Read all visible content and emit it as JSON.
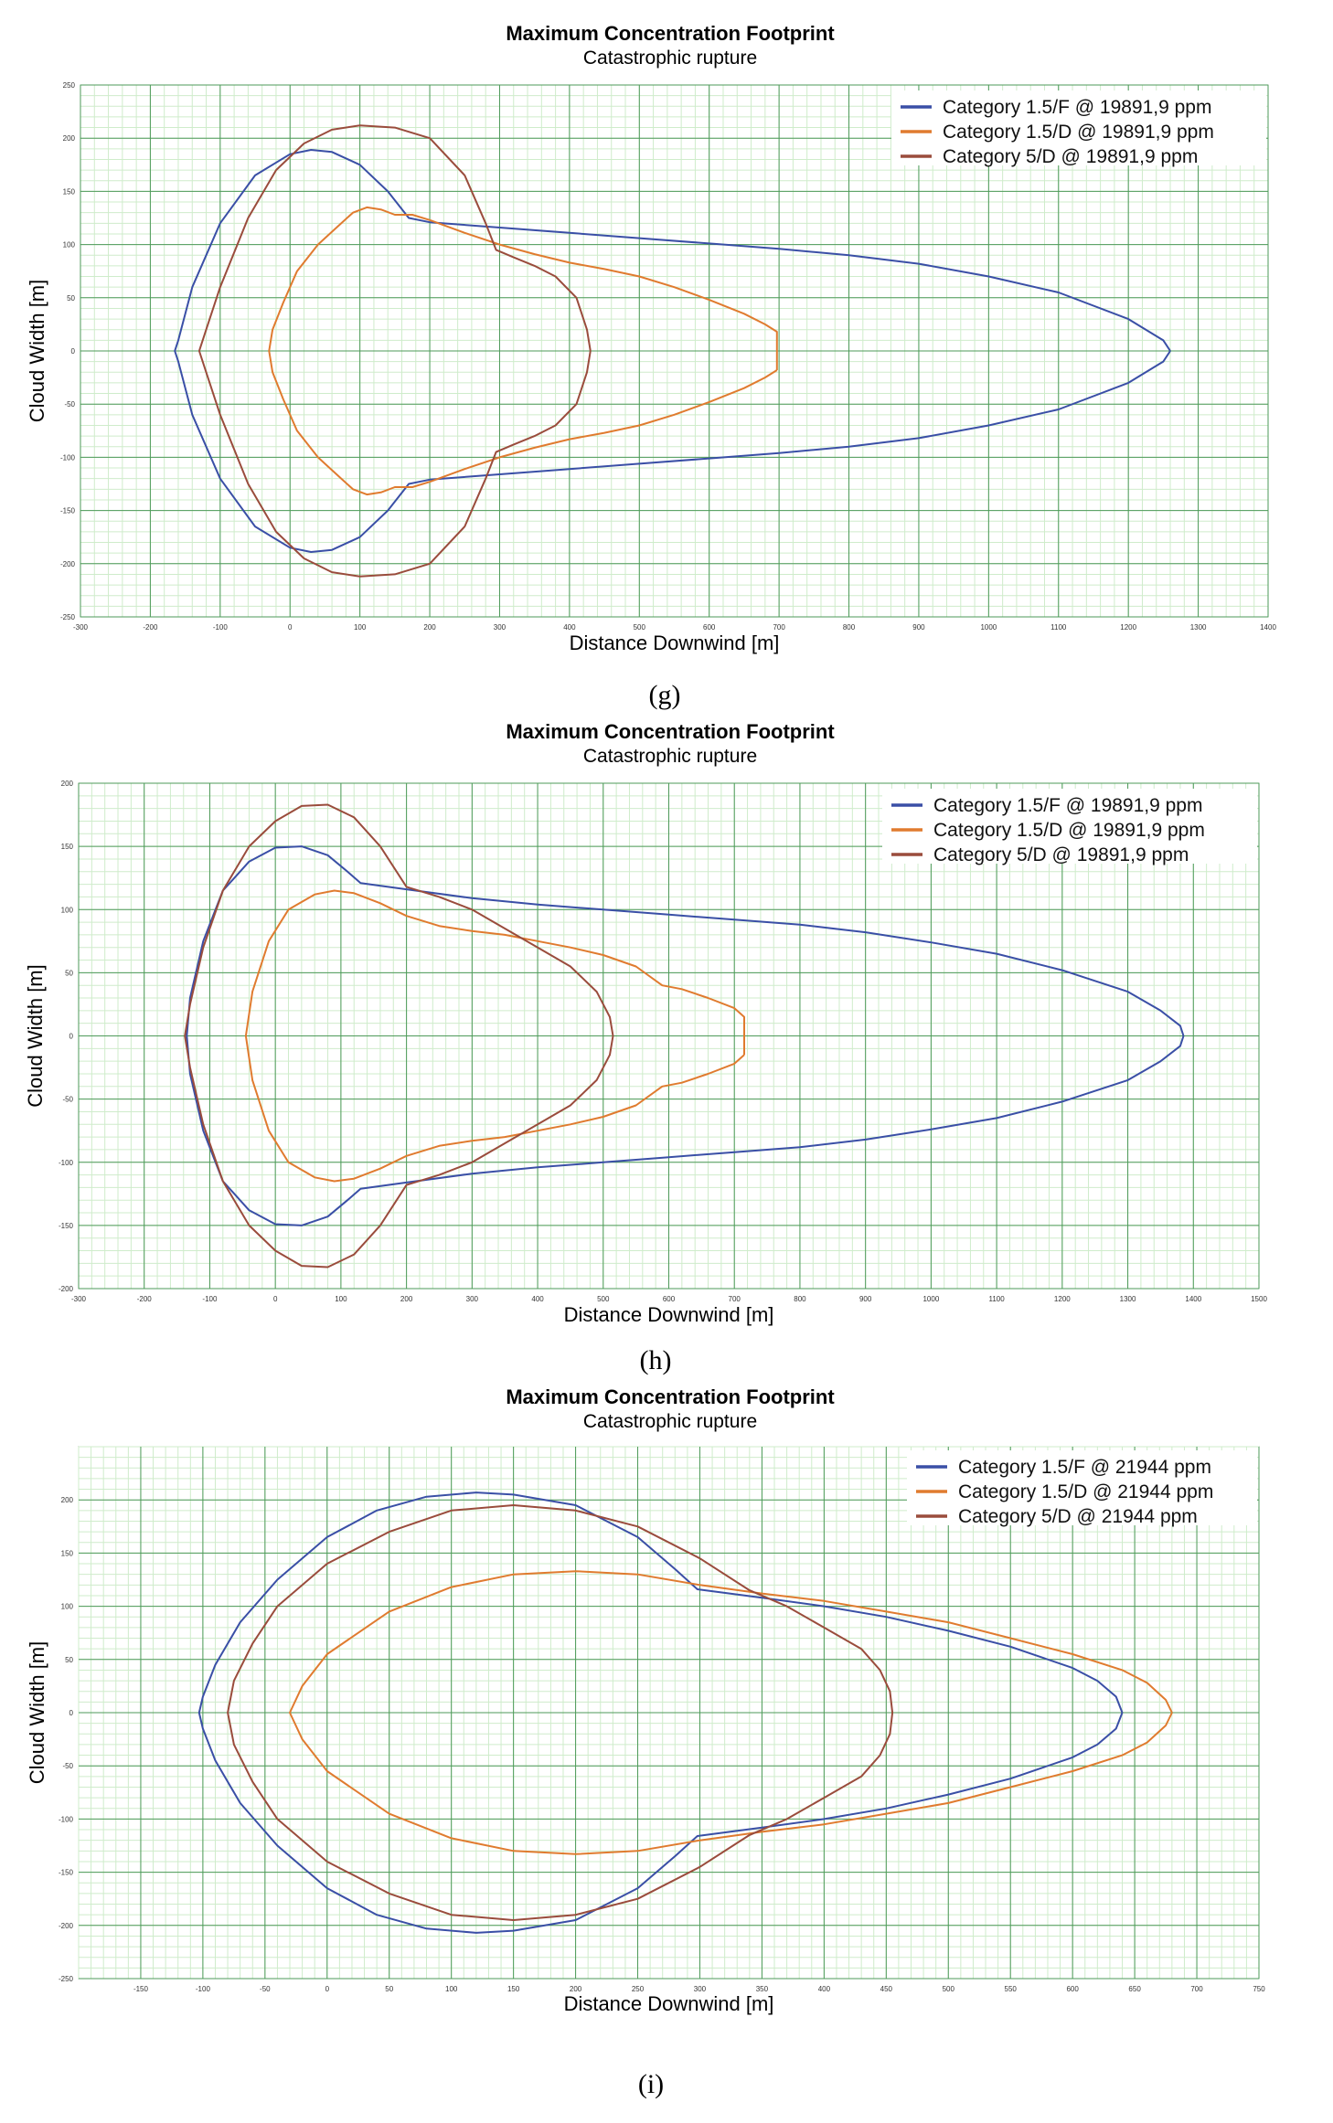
{
  "colors": {
    "cat_15F": "#3a4fa6",
    "cat_15D": "#e07b2f",
    "cat_5D": "#9a4c3c",
    "minor_grid": "#cfeccb",
    "major_grid": "#4e9a5a"
  },
  "chart_data": [
    {
      "panel_label": "(g)",
      "type": "line",
      "title": "Maximum Concentration Footprint",
      "subtitle": "Catastrophic rupture",
      "xlabel": "Distance Downwind [m]",
      "ylabel": "Cloud Width [m]",
      "xlim": [
        -300,
        1400
      ],
      "ylim": [
        -250,
        250
      ],
      "xticks": [
        -300,
        -200,
        -100,
        0,
        100,
        200,
        300,
        400,
        500,
        600,
        700,
        800,
        900,
        1000,
        1100,
        1200,
        1300,
        1400
      ],
      "yticks": [
        -250,
        -200,
        -150,
        -100,
        -50,
        0,
        50,
        100,
        150,
        200,
        250
      ],
      "grid": true,
      "legend": "top-right",
      "series": [
        {
          "name": "Category 1.5/F @ 19891,9 ppm",
          "color_key": "cat_15F",
          "x": [
            1260,
            1250,
            1200,
            1100,
            1000,
            900,
            800,
            700,
            600,
            500,
            400,
            300,
            200,
            170,
            140,
            100,
            60,
            30,
            0,
            -50,
            -100,
            -140,
            -160,
            -165,
            -160,
            -140,
            -100,
            -50,
            0,
            30,
            60,
            100,
            140,
            170,
            200,
            300,
            400,
            500,
            600,
            700,
            800,
            900,
            1000,
            1100,
            1200,
            1250,
            1260
          ],
          "y": [
            0,
            10,
            30,
            55,
            70,
            82,
            90,
            96,
            101,
            106,
            111,
            116,
            121,
            125,
            150,
            175,
            187,
            189,
            185,
            165,
            120,
            60,
            10,
            0,
            -10,
            -60,
            -120,
            -165,
            -185,
            -189,
            -187,
            -175,
            -150,
            -125,
            -121,
            -116,
            -111,
            -106,
            -101,
            -96,
            -90,
            -82,
            -70,
            -55,
            -30,
            -10,
            0
          ]
        },
        {
          "name": "Category 1.5/D @ 19891,9 ppm",
          "color_key": "cat_15D",
          "x": [
            697,
            697,
            680,
            650,
            600,
            550,
            500,
            450,
            400,
            350,
            300,
            250,
            200,
            175,
            150,
            130,
            110,
            90,
            70,
            40,
            10,
            -10,
            -25,
            -30,
            -25,
            -10,
            10,
            40,
            70,
            90,
            110,
            130,
            150,
            175,
            200,
            250,
            300,
            350,
            400,
            450,
            500,
            550,
            600,
            650,
            680,
            697,
            697
          ],
          "y": [
            -18,
            18,
            25,
            35,
            48,
            60,
            70,
            77,
            83,
            91,
            100,
            111,
            123,
            128,
            128,
            133,
            135,
            130,
            118,
            100,
            75,
            45,
            20,
            0,
            -20,
            -45,
            -75,
            -100,
            -118,
            -130,
            -135,
            -133,
            -128,
            -128,
            -123,
            -111,
            -100,
            -91,
            -83,
            -77,
            -70,
            -60,
            -48,
            -35,
            -25,
            -18,
            -18
          ]
        },
        {
          "name": "Category 5/D @ 19891,9 ppm",
          "color_key": "cat_5D",
          "x": [
            430,
            425,
            410,
            380,
            350,
            320,
            295,
            280,
            250,
            200,
            150,
            100,
            60,
            20,
            -20,
            -60,
            -100,
            -120,
            -130,
            -120,
            -100,
            -60,
            -20,
            20,
            60,
            100,
            150,
            200,
            250,
            280,
            295,
            320,
            350,
            380,
            410,
            425,
            430
          ],
          "y": [
            0,
            20,
            50,
            70,
            80,
            88,
            95,
            120,
            165,
            200,
            210,
            212,
            208,
            195,
            170,
            125,
            60,
            20,
            0,
            -20,
            -60,
            -125,
            -170,
            -195,
            -208,
            -212,
            -210,
            -200,
            -165,
            -120,
            -95,
            -88,
            -80,
            -70,
            -50,
            -20,
            0
          ]
        }
      ]
    },
    {
      "panel_label": "(h)",
      "type": "line",
      "title": "Maximum Concentration Footprint",
      "subtitle": "Catastrophic rupture",
      "xlabel": "Distance Downwind [m]",
      "ylabel": "Cloud Width [m]",
      "xlim": [
        -300,
        1500
      ],
      "ylim": [
        -200,
        200
      ],
      "xticks": [
        -300,
        -200,
        -100,
        0,
        100,
        200,
        300,
        400,
        500,
        600,
        700,
        800,
        900,
        1000,
        1100,
        1200,
        1300,
        1400,
        1500
      ],
      "yticks": [
        -200,
        -150,
        -100,
        -50,
        0,
        50,
        100,
        150,
        200
      ],
      "grid": true,
      "legend": "top-right",
      "series": [
        {
          "name": "Category 1.5/F @ 19891,9 ppm",
          "color_key": "cat_15F",
          "x": [
            1385,
            1380,
            1350,
            1300,
            1200,
            1100,
            1000,
            900,
            800,
            700,
            600,
            500,
            400,
            300,
            200,
            130,
            110,
            80,
            40,
            0,
            -40,
            -80,
            -110,
            -130,
            -135,
            -130,
            -110,
            -80,
            -40,
            0,
            40,
            80,
            110,
            130,
            200,
            300,
            400,
            500,
            600,
            700,
            800,
            900,
            1000,
            1100,
            1200,
            1300,
            1350,
            1380,
            1385
          ],
          "y": [
            0,
            8,
            20,
            35,
            52,
            65,
            74,
            82,
            88,
            92,
            96,
            100,
            104,
            109,
            116,
            121,
            130,
            143,
            150,
            149,
            138,
            115,
            75,
            30,
            0,
            -30,
            -75,
            -115,
            -138,
            -149,
            -150,
            -143,
            -130,
            -121,
            -116,
            -109,
            -104,
            -100,
            -96,
            -92,
            -88,
            -82,
            -74,
            -65,
            -52,
            -35,
            -20,
            -8,
            0
          ]
        },
        {
          "name": "Category 1.5/D @ 19891,9 ppm",
          "color_key": "cat_15D",
          "x": [
            715,
            715,
            700,
            660,
            620,
            590,
            550,
            500,
            450,
            400,
            350,
            300,
            250,
            200,
            160,
            120,
            90,
            60,
            20,
            -10,
            -35,
            -45,
            -35,
            -10,
            20,
            60,
            90,
            120,
            160,
            200,
            250,
            300,
            350,
            400,
            450,
            500,
            550,
            590,
            620,
            660,
            700,
            715,
            715
          ],
          "y": [
            -15,
            15,
            22,
            30,
            37,
            40,
            55,
            64,
            70,
            75,
            80,
            83,
            87,
            95,
            105,
            113,
            115,
            112,
            100,
            75,
            35,
            0,
            -35,
            -75,
            -100,
            -112,
            -115,
            -113,
            -105,
            -95,
            -87,
            -83,
            -80,
            -75,
            -70,
            -64,
            -55,
            -40,
            -37,
            -30,
            -22,
            -15,
            -15
          ]
        },
        {
          "name": "Category 5/D @ 19891,9 ppm",
          "color_key": "cat_5D",
          "x": [
            515,
            510,
            490,
            450,
            400,
            350,
            300,
            250,
            200,
            160,
            120,
            80,
            40,
            0,
            -40,
            -80,
            -110,
            -130,
            -138,
            -130,
            -110,
            -80,
            -40,
            0,
            40,
            80,
            120,
            160,
            200,
            250,
            300,
            350,
            400,
            450,
            490,
            510,
            515
          ],
          "y": [
            0,
            15,
            35,
            55,
            70,
            85,
            100,
            110,
            118,
            150,
            173,
            183,
            182,
            170,
            150,
            115,
            70,
            25,
            0,
            -25,
            -70,
            -115,
            -150,
            -170,
            -182,
            -183,
            -173,
            -150,
            -118,
            -110,
            -100,
            -85,
            -70,
            -55,
            -35,
            -15,
            0
          ]
        }
      ]
    },
    {
      "panel_label": "(i)",
      "type": "line",
      "title": "Maximum Concentration Footprint",
      "subtitle": "Catastrophic rupture",
      "xlabel": "Distance Downwind [m]",
      "ylabel": "Cloud Width [m]",
      "xlim": [
        -200,
        750
      ],
      "ylim": [
        -250,
        250
      ],
      "xticks": [
        -150,
        -100,
        -50,
        0,
        50,
        100,
        150,
        200,
        250,
        300,
        350,
        400,
        450,
        500,
        550,
        600,
        650,
        700,
        750
      ],
      "yticks": [
        -250,
        -200,
        -150,
        -100,
        -50,
        0,
        50,
        100,
        150,
        200
      ],
      "grid": true,
      "legend": "top-right",
      "series": [
        {
          "name": "Category 1.5/F @ 21944 ppm",
          "color_key": "cat_15F",
          "x": [
            640,
            635,
            620,
            600,
            550,
            500,
            450,
            400,
            350,
            298,
            280,
            250,
            200,
            150,
            120,
            80,
            40,
            0,
            -40,
            -70,
            -90,
            -100,
            -103,
            -100,
            -90,
            -70,
            -40,
            0,
            40,
            80,
            120,
            150,
            200,
            250,
            280,
            298,
            350,
            400,
            450,
            500,
            550,
            600,
            620,
            635,
            640
          ],
          "y": [
            0,
            15,
            30,
            42,
            62,
            77,
            90,
            100,
            108,
            116,
            135,
            165,
            195,
            205,
            207,
            203,
            190,
            165,
            125,
            85,
            45,
            15,
            0,
            -15,
            -45,
            -85,
            -125,
            -165,
            -190,
            -203,
            -207,
            -205,
            -195,
            -165,
            -135,
            -116,
            -108,
            -100,
            -90,
            -77,
            -62,
            -42,
            -30,
            -15,
            0
          ]
        },
        {
          "name": "Category 1.5/D @ 21944 ppm",
          "color_key": "cat_15D",
          "x": [
            680,
            675,
            660,
            640,
            600,
            550,
            500,
            450,
            400,
            350,
            300,
            250,
            200,
            150,
            100,
            50,
            0,
            -20,
            -30,
            -20,
            0,
            50,
            100,
            150,
            200,
            250,
            300,
            350,
            400,
            450,
            500,
            550,
            600,
            640,
            660,
            675,
            680
          ],
          "y": [
            0,
            12,
            28,
            40,
            55,
            70,
            85,
            95,
            105,
            112,
            120,
            130,
            133,
            130,
            118,
            95,
            55,
            25,
            0,
            -25,
            -55,
            -95,
            -118,
            -130,
            -133,
            -130,
            -120,
            -112,
            -105,
            -95,
            -85,
            -70,
            -55,
            -40,
            -28,
            -12,
            0
          ]
        },
        {
          "name": "Category 5/D @ 21944 ppm",
          "color_key": "cat_5D",
          "x": [
            455,
            453,
            445,
            430,
            400,
            370,
            340,
            300,
            250,
            200,
            150,
            100,
            50,
            0,
            -40,
            -60,
            -75,
            -80,
            -75,
            -60,
            -40,
            0,
            50,
            100,
            150,
            200,
            250,
            300,
            340,
            370,
            400,
            430,
            445,
            453,
            455
          ],
          "y": [
            0,
            20,
            40,
            60,
            80,
            100,
            115,
            145,
            175,
            190,
            195,
            190,
            170,
            140,
            100,
            65,
            30,
            0,
            -30,
            -65,
            -100,
            -140,
            -170,
            -190,
            -195,
            -190,
            -175,
            -145,
            -115,
            -100,
            -80,
            -60,
            -40,
            -20,
            0
          ]
        }
      ]
    }
  ]
}
